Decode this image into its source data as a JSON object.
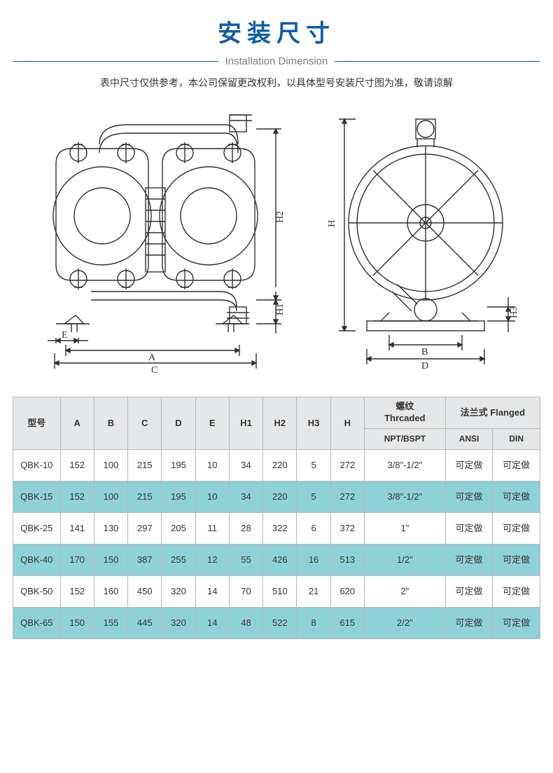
{
  "palette": {
    "title_color": "#0e5da8",
    "line_color": "#0e5da8",
    "subtitle_color": "#7d7d7d",
    "note_color": "#333333",
    "diagram_stroke": "#2f2f2f",
    "table_border": "#b9b9b9",
    "header_bg": "#e6e7e8",
    "row_highlight_bg": "#8fd1d9",
    "row_plain_bg": "#ffffff",
    "cell_text": "#333333"
  },
  "title_cn": "安装尺寸",
  "subtitle_en": "Installation Dimension",
  "note": "表中尺寸仅供参考，本公司保留更改权利，以具体型号安装尺寸图为准，敬请谅解",
  "dim_labels": {
    "A": "A",
    "B": "B",
    "C": "C",
    "D": "D",
    "E": "E",
    "H": "H",
    "H1": "H1",
    "H2": "H2",
    "H3": "H3"
  },
  "table": {
    "header": {
      "model": "型号",
      "A": "A",
      "B": "B",
      "C": "C",
      "D": "D",
      "E": "E",
      "H1": "H1",
      "H2": "H2",
      "H3": "H3",
      "H": "H",
      "threaded_top": "螺纹",
      "threaded_bottom": "Thrcaded",
      "npt": "NPT/BSPT",
      "flanged": "法兰式 Flanged",
      "ansi": "ANSI",
      "din": "DIN"
    },
    "rows": [
      {
        "model": "QBK-10",
        "A": "152",
        "B": "100",
        "C": "215",
        "D": "195",
        "E": "10",
        "H1": "34",
        "H2": "220",
        "H3": "5",
        "H": "272",
        "npt": "3/8\"-1/2\"",
        "ansi": "可定做",
        "din": "可定做",
        "hl": false
      },
      {
        "model": "QBK-15",
        "A": "152",
        "B": "100",
        "C": "215",
        "D": "195",
        "E": "10",
        "H1": "34",
        "H2": "220",
        "H3": "5",
        "H": "272",
        "npt": "3/8\"-1/2\"",
        "ansi": "可定做",
        "din": "可定做",
        "hl": true
      },
      {
        "model": "QBK-25",
        "A": "141",
        "B": "130",
        "C": "297",
        "D": "205",
        "E": "11",
        "H1": "28",
        "H2": "322",
        "H3": "6",
        "H": "372",
        "npt": "1\"",
        "ansi": "可定做",
        "din": "可定做",
        "hl": false
      },
      {
        "model": "QBK-40",
        "A": "170",
        "B": "150",
        "C": "387",
        "D": "255",
        "E": "12",
        "H1": "55",
        "H2": "426",
        "H3": "16",
        "H": "513",
        "npt": "1/2\"",
        "ansi": "可定做",
        "din": "可定做",
        "hl": true
      },
      {
        "model": "QBK-50",
        "A": "152",
        "B": "160",
        "C": "450",
        "D": "320",
        "E": "14",
        "H1": "70",
        "H2": "510",
        "H3": "21",
        "H": "620",
        "npt": "2\"",
        "ansi": "可定做",
        "din": "可定做",
        "hl": false
      },
      {
        "model": "QBK-65",
        "A": "150",
        "B": "155",
        "C": "445",
        "D": "320",
        "E": "14",
        "H1": "48",
        "H2": "522",
        "H3": "8",
        "H": "615",
        "npt": "2/2\"",
        "ansi": "可定做",
        "din": "可定做",
        "hl": true
      }
    ]
  }
}
